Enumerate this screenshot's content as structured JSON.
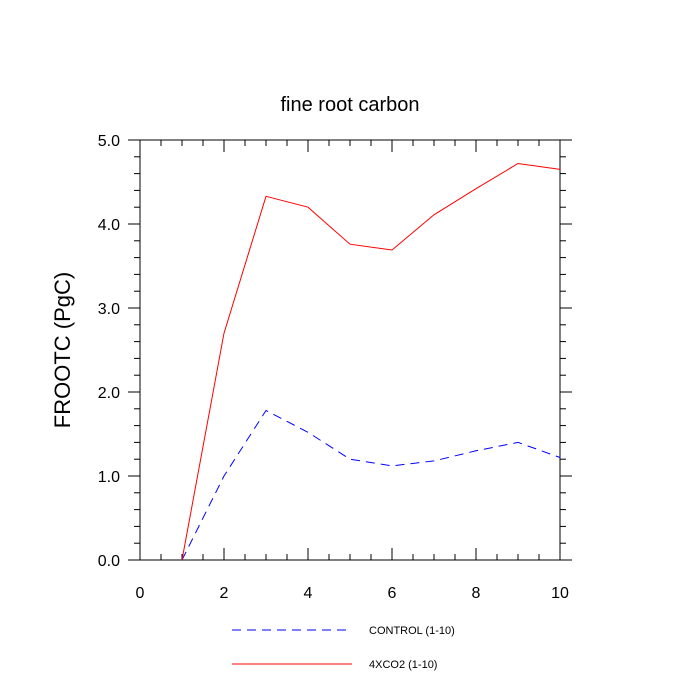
{
  "chart_data": {
    "type": "line",
    "title": "fine root carbon",
    "xlabel": "",
    "ylabel": "FROOTC  (PgC)",
    "xlim": [
      0,
      10
    ],
    "ylim": [
      0,
      5
    ],
    "xticks": [
      0,
      2,
      4,
      6,
      8,
      10
    ],
    "xtick_labels": [
      "0",
      "2",
      "4",
      "6",
      "8",
      "10"
    ],
    "yticks": [
      0,
      1,
      2,
      3,
      4,
      5
    ],
    "ytick_labels": [
      "0.0",
      "1.0",
      "2.0",
      "3.0",
      "4.0",
      "5.0"
    ],
    "grid": false,
    "legend_position": "bottom",
    "series": [
      {
        "name": "CONTROL (1-10)",
        "color": "#0000ff",
        "style": "dashed",
        "x": [
          1,
          2,
          3,
          4,
          5,
          6,
          7,
          8,
          9,
          10
        ],
        "values": [
          0.0,
          1.0,
          1.78,
          1.52,
          1.2,
          1.12,
          1.18,
          1.3,
          1.4,
          1.22
        ]
      },
      {
        "name": "4XCO2 (1-10)",
        "color": "#ff0000",
        "style": "solid",
        "x": [
          1,
          2,
          3,
          4,
          5,
          6,
          7,
          8,
          9,
          10
        ],
        "values": [
          0.0,
          2.7,
          4.33,
          4.2,
          3.76,
          3.69,
          4.11,
          4.42,
          4.72,
          4.65
        ]
      }
    ]
  }
}
